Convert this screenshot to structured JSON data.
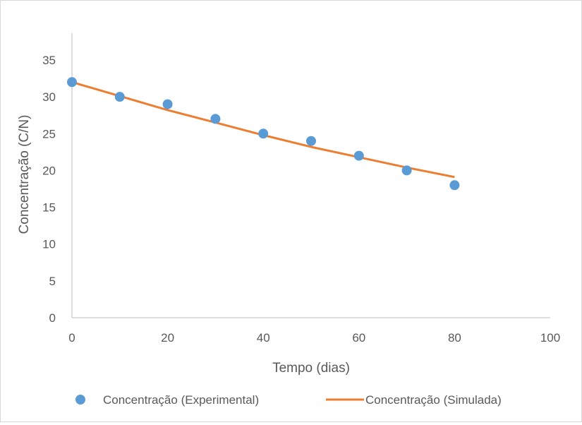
{
  "chart_data": {
    "type": "scatter",
    "title": "",
    "xlabel": "Tempo (dias)",
    "ylabel": "Concentração (C/N)",
    "xlim": [
      0,
      100
    ],
    "ylim": [
      0,
      35
    ],
    "x_ticks": [
      "0",
      "20",
      "40",
      "60",
      "80",
      "100"
    ],
    "y_ticks": [
      "0",
      "5",
      "10",
      "15",
      "20",
      "25",
      "30",
      "35"
    ],
    "grid": false,
    "legend_position": "bottom",
    "series": [
      {
        "name": "Concentração (Experimental)",
        "kind": "scatter",
        "color": "#5b9bd5",
        "x": [
          0,
          10,
          20,
          30,
          40,
          50,
          60,
          70,
          80
        ],
        "y": [
          32,
          30,
          29,
          27,
          25,
          24,
          22,
          20,
          18
        ]
      },
      {
        "name": "Concentração (Simulada)",
        "kind": "line",
        "color": "#ed7d31",
        "x": [
          0,
          10,
          20,
          30,
          40,
          50,
          60,
          70,
          80
        ],
        "y": [
          32,
          30.1,
          28.2,
          26.5,
          24.8,
          23.2,
          21.8,
          20.4,
          19.1
        ]
      }
    ]
  }
}
